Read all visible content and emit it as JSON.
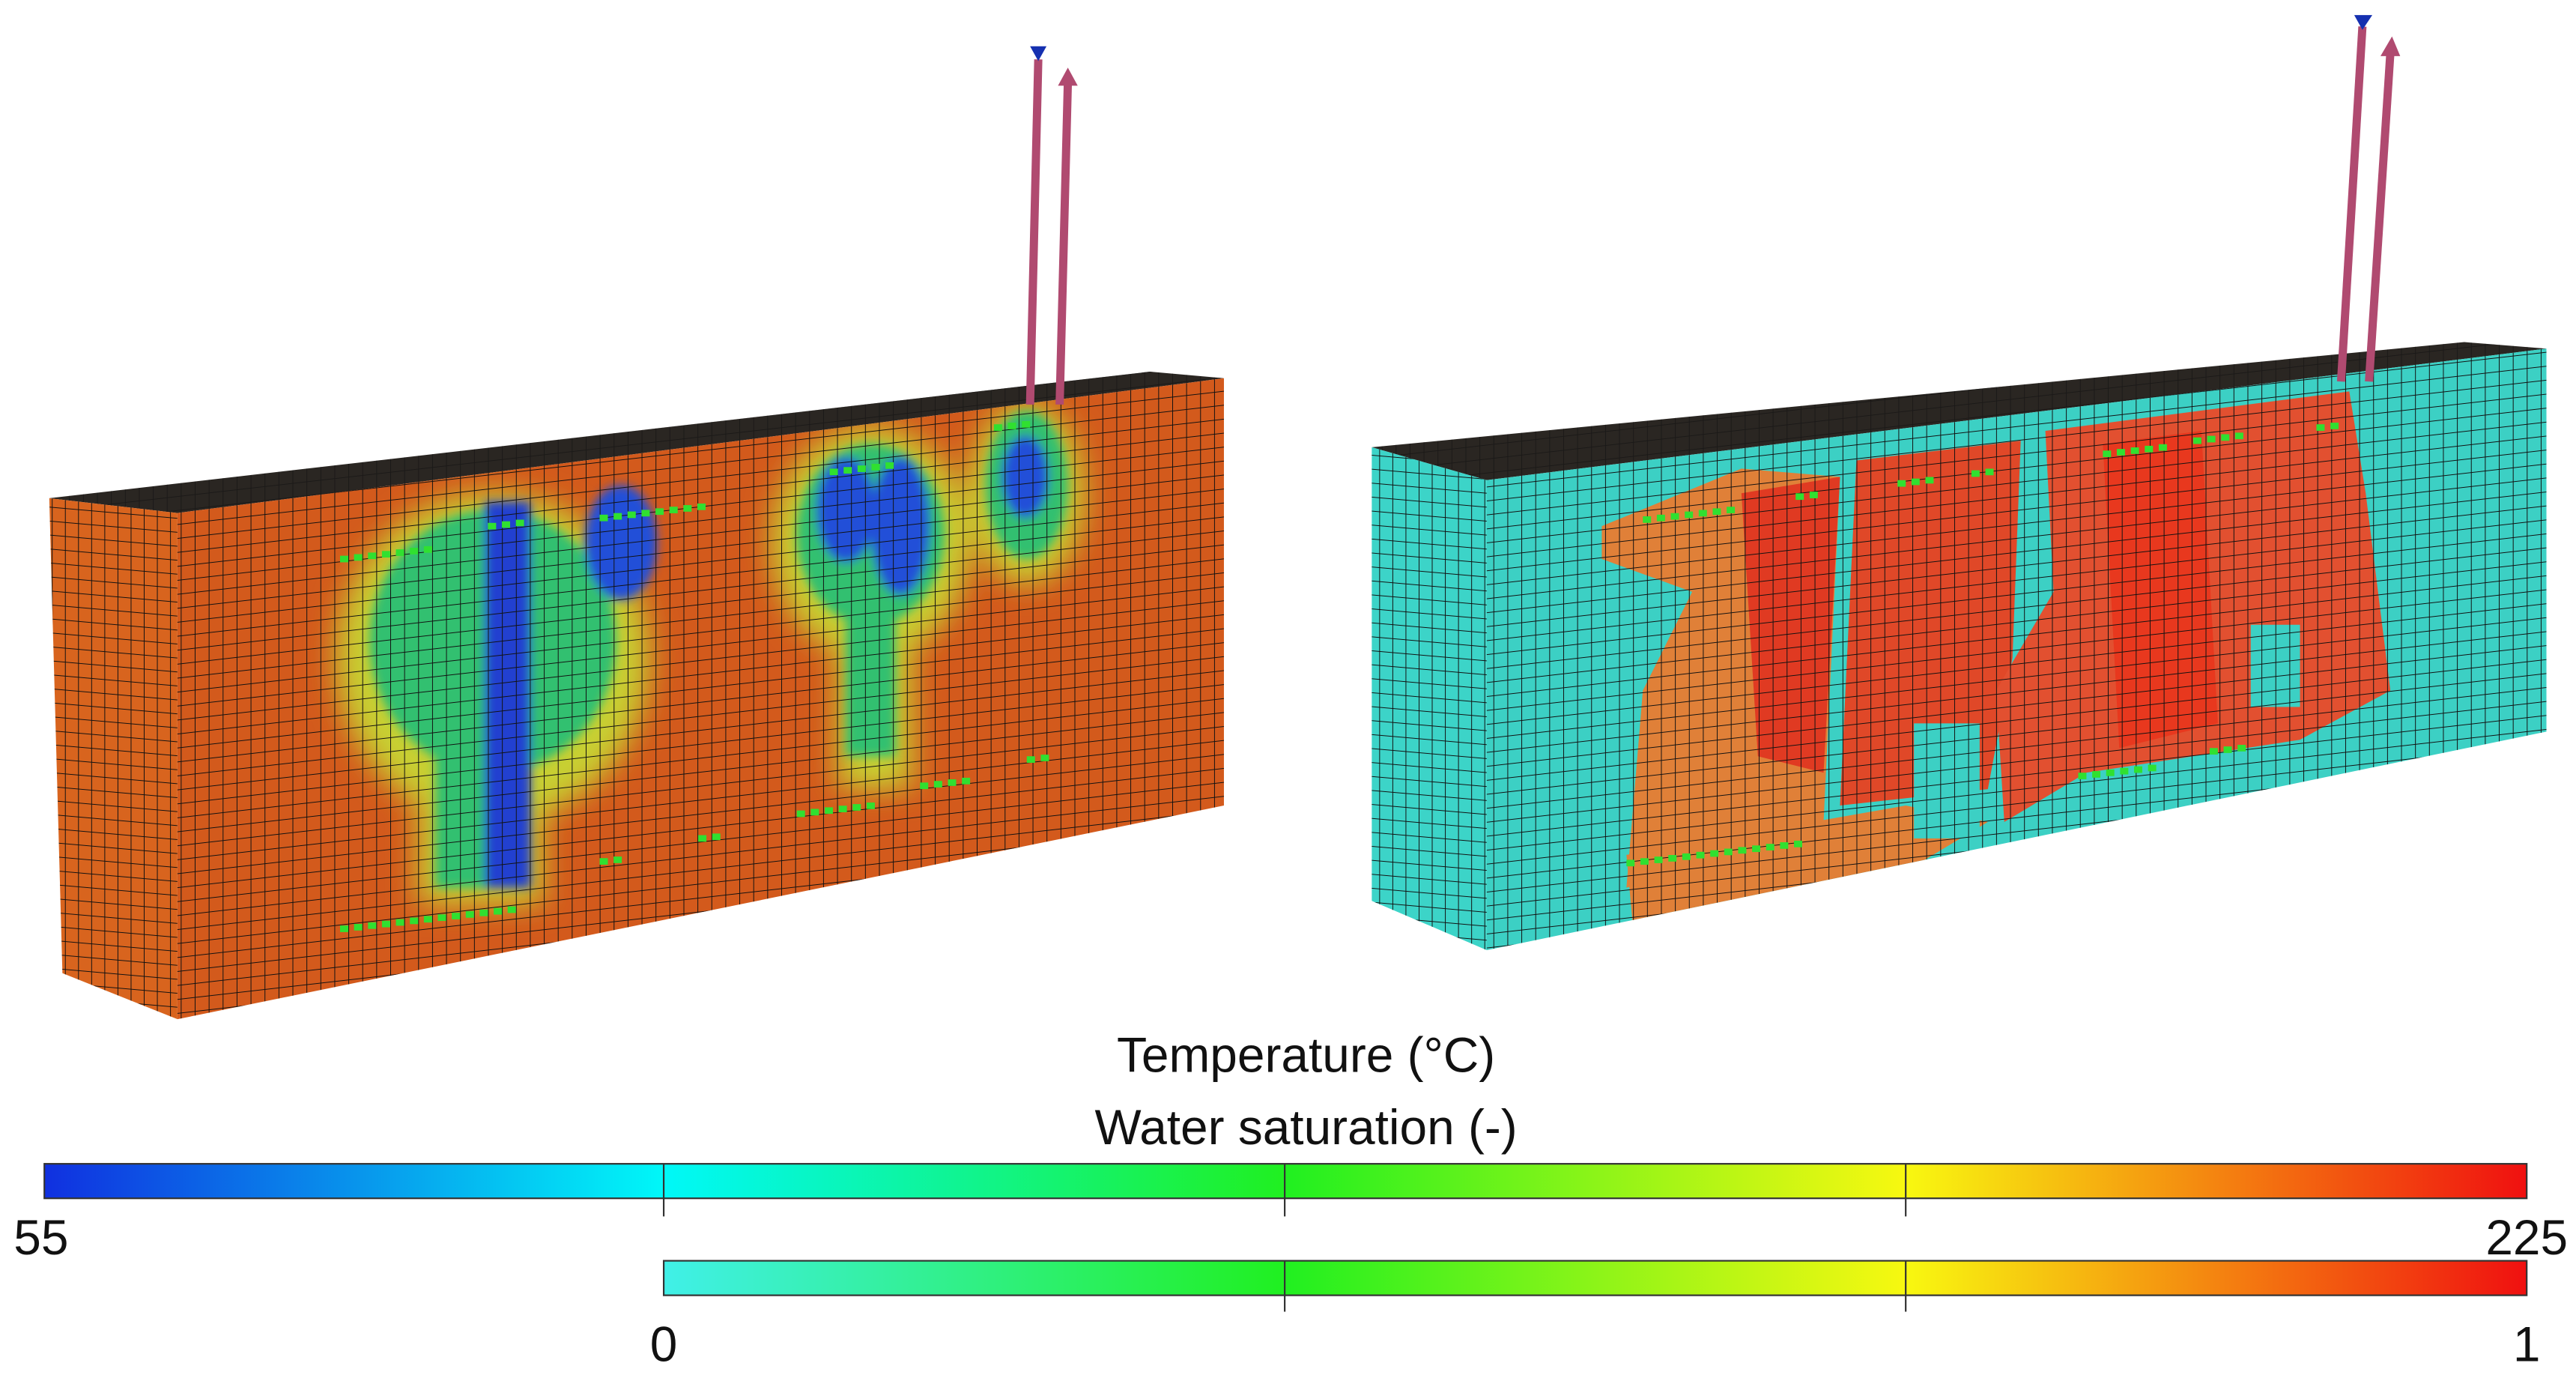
{
  "legend": {
    "temperature": {
      "title": "Temperature (°C)",
      "min": 55,
      "max": 225
    },
    "saturation": {
      "title": "Water saturation (-)",
      "min": 0,
      "max": 1
    }
  }
}
